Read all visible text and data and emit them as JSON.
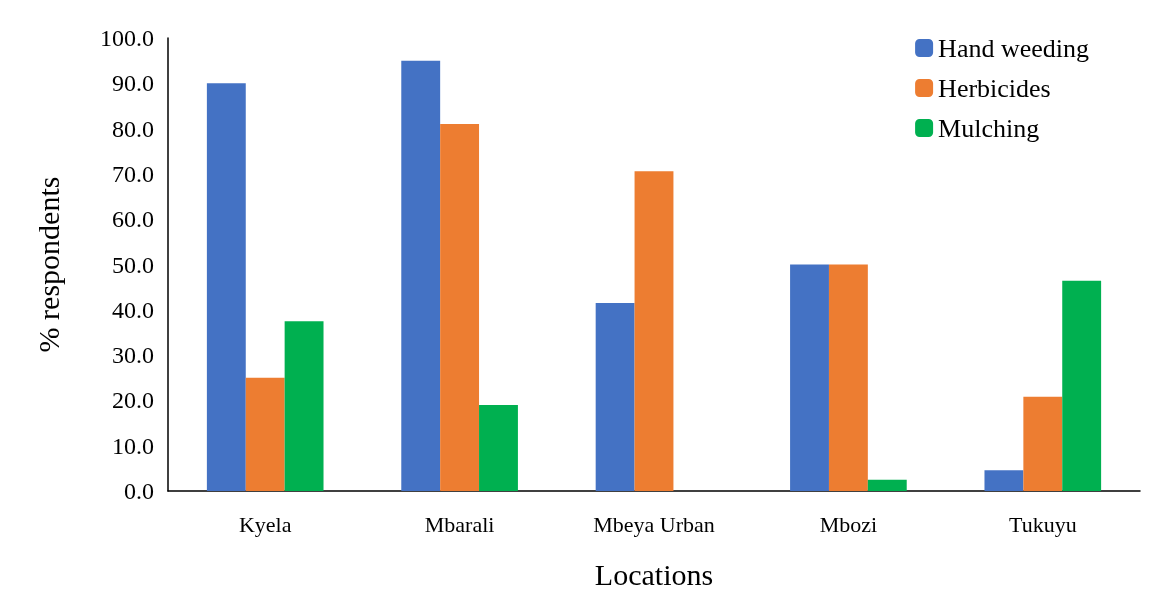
{
  "chart_data": {
    "type": "bar",
    "xlabel": "Locations",
    "ylabel": "% respondents",
    "categories": [
      "Kyela",
      "Mbarali",
      "Mbeya Urban",
      "Mbozi",
      "Tukuyu"
    ],
    "series": [
      {
        "name": "Hand weeding",
        "color": "#4472c4",
        "values": [
          90,
          95,
          41.5,
          50,
          4.6
        ]
      },
      {
        "name": "Herbicides",
        "color": "#ed7d31",
        "values": [
          25,
          81,
          70.6,
          50,
          20.8
        ]
      },
      {
        "name": "Mulching",
        "color": "#00b050",
        "values": [
          37.5,
          19,
          0,
          2.5,
          46.4
        ]
      }
    ],
    "ylim": [
      0,
      100
    ],
    "yticks": [
      {
        "value": 0,
        "label": "0.0"
      },
      {
        "value": 10,
        "label": "10.0"
      },
      {
        "value": 20,
        "label": "20.0"
      },
      {
        "value": 30,
        "label": "30.0"
      },
      {
        "value": 40,
        "label": "40.0"
      },
      {
        "value": 50,
        "label": "50.0"
      },
      {
        "value": 60,
        "label": "60.0"
      },
      {
        "value": 70,
        "label": "70.0"
      },
      {
        "value": 80,
        "label": "80.0"
      },
      {
        "value": 90,
        "label": "90.0"
      },
      {
        "value": 100,
        "label": "100.0"
      }
    ],
    "grid": false,
    "legend": "top right"
  }
}
